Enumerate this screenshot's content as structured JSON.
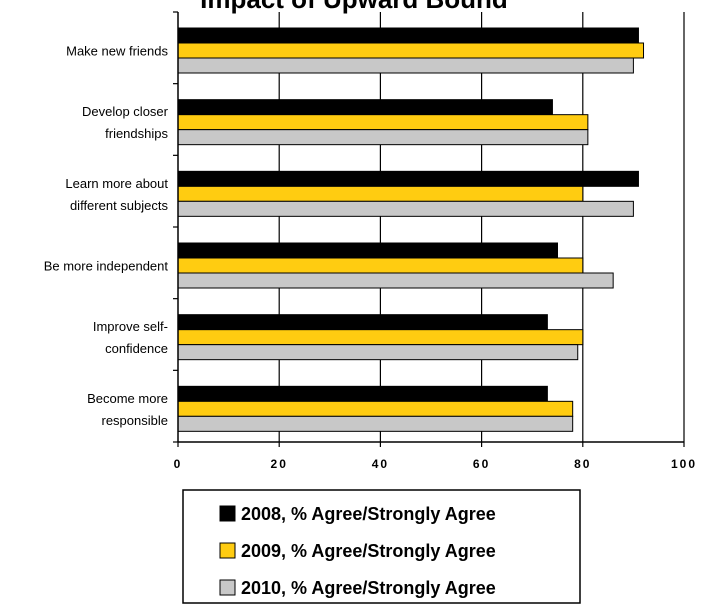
{
  "chart_data": {
    "type": "bar",
    "orientation": "horizontal",
    "title": "Impact of Upward Bound",
    "title_visible_fragment": "p       p",
    "categories": [
      [
        "Make new friends"
      ],
      [
        "Develop closer",
        "friendships"
      ],
      [
        "Learn more about",
        "different subjects"
      ],
      [
        "Be more independent"
      ],
      [
        "Improve self-",
        "confidence"
      ],
      [
        "Become more",
        "responsible"
      ]
    ],
    "series": [
      {
        "name": "2008, % Agree/Strongly Agree",
        "color": "#000000",
        "values": [
          91,
          74,
          91,
          75,
          73,
          73
        ]
      },
      {
        "name": "2009, % Agree/Strongly Agree",
        "color": "#FFCC11",
        "values": [
          92,
          81,
          80,
          80,
          80,
          78
        ]
      },
      {
        "name": "2010, % Agree/Strongly Agree",
        "color": "#C8C8C8",
        "values": [
          90,
          81,
          90,
          86,
          79,
          78
        ]
      }
    ],
    "xlim": [
      0,
      100
    ],
    "xticks": [
      "0",
      "20",
      "40",
      "60",
      "80",
      "100"
    ],
    "grid": "vertical major lines",
    "legend_position": "bottom"
  }
}
